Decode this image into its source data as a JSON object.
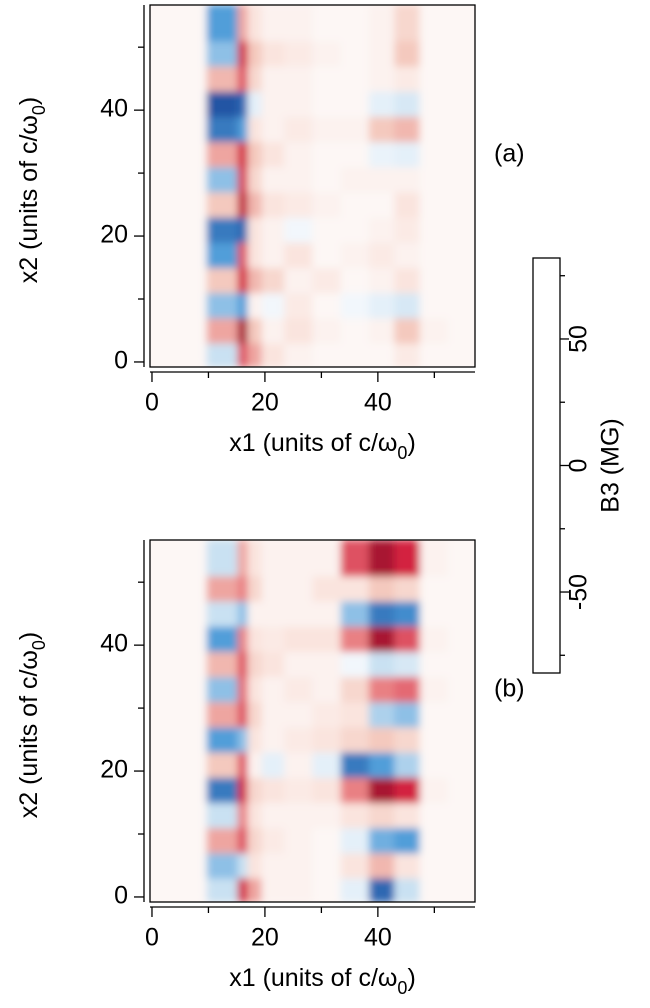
{
  "chart_data": [
    {
      "type": "heatmap",
      "panel_label": "(a)",
      "xlabel": [
        "x1 (units of c/ω",
        "0",
        ")"
      ],
      "ylabel": [
        "x2 (units of c/ω",
        "0",
        ")"
      ],
      "xlim": [
        -0.35,
        57.2
      ],
      "ylim": [
        -0.8,
        56.7
      ],
      "xticks": [
        0,
        20,
        40
      ],
      "xminorticks": [
        10,
        30,
        50
      ],
      "yticks": [
        0,
        20,
        40
      ],
      "yminorticks": [
        10,
        30,
        50
      ],
      "x": [
        5,
        14.5,
        16,
        18,
        21,
        26,
        31,
        36,
        41,
        45,
        50,
        55
      ],
      "y": [
        1,
        5,
        9,
        13,
        17,
        21,
        25,
        29,
        33,
        37,
        41,
        45,
        49,
        53
      ],
      "z": [
        [
          3,
          -20,
          50,
          30,
          10,
          5,
          3,
          3,
          3,
          8,
          3,
          3
        ],
        [
          3,
          30,
          70,
          20,
          5,
          10,
          5,
          3,
          5,
          20,
          5,
          3
        ],
        [
          3,
          -30,
          -40,
          5,
          -5,
          8,
          3,
          -5,
          -10,
          -15,
          3,
          3
        ],
        [
          3,
          20,
          60,
          25,
          15,
          5,
          8,
          3,
          5,
          10,
          3,
          3
        ],
        [
          3,
          -40,
          50,
          10,
          5,
          10,
          3,
          5,
          8,
          5,
          3,
          3
        ],
        [
          3,
          -50,
          -55,
          10,
          5,
          -5,
          3,
          3,
          5,
          8,
          3,
          3
        ],
        [
          3,
          20,
          65,
          25,
          10,
          8,
          5,
          3,
          3,
          10,
          3,
          3
        ],
        [
          3,
          -30,
          55,
          15,
          5,
          5,
          3,
          5,
          5,
          5,
          3,
          3
        ],
        [
          3,
          30,
          60,
          20,
          10,
          5,
          3,
          3,
          -8,
          -10,
          3,
          3
        ],
        [
          3,
          -50,
          -40,
          10,
          5,
          8,
          5,
          5,
          20,
          25,
          3,
          3
        ],
        [
          3,
          -60,
          -55,
          -10,
          5,
          5,
          3,
          3,
          -10,
          -15,
          3,
          3
        ],
        [
          3,
          25,
          50,
          15,
          5,
          5,
          3,
          3,
          5,
          8,
          3,
          3
        ],
        [
          3,
          -30,
          60,
          20,
          10,
          8,
          5,
          3,
          5,
          20,
          3,
          3
        ],
        [
          3,
          -40,
          30,
          10,
          5,
          5,
          3,
          3,
          5,
          15,
          3,
          3
        ]
      ]
    },
    {
      "type": "heatmap",
      "panel_label": "(b)",
      "xlabel": [
        "x1 (units of c/ω",
        "0",
        ")"
      ],
      "ylabel": [
        "x2 (units of c/ω",
        "0",
        ")"
      ],
      "xlim": [
        -0.35,
        57.2
      ],
      "ylim": [
        -0.8,
        56.7
      ],
      "xticks": [
        0,
        20,
        40
      ],
      "xminorticks": [
        10,
        30,
        50
      ],
      "yticks": [
        0,
        20,
        40
      ],
      "yminorticks": [
        10,
        30,
        50
      ],
      "x": [
        5,
        14.5,
        16,
        18,
        21,
        26,
        31,
        36,
        41,
        45,
        50,
        55
      ],
      "y": [
        1,
        5,
        9,
        13,
        17,
        21,
        25,
        29,
        33,
        37,
        41,
        45,
        49,
        53
      ],
      "z": [
        [
          3,
          -20,
          60,
          30,
          5,
          5,
          3,
          -10,
          -55,
          -20,
          3,
          3
        ],
        [
          3,
          -30,
          -20,
          10,
          5,
          5,
          3,
          10,
          25,
          10,
          3,
          3
        ],
        [
          3,
          30,
          50,
          15,
          8,
          5,
          3,
          -10,
          -35,
          -40,
          3,
          3
        ],
        [
          3,
          -20,
          40,
          10,
          5,
          5,
          5,
          10,
          15,
          10,
          3,
          3
        ],
        [
          3,
          -50,
          60,
          15,
          10,
          8,
          10,
          40,
          70,
          60,
          5,
          3
        ],
        [
          3,
          20,
          50,
          5,
          -10,
          5,
          -10,
          -50,
          -40,
          -25,
          3,
          3
        ],
        [
          3,
          -40,
          -30,
          10,
          5,
          8,
          10,
          15,
          20,
          15,
          3,
          3
        ],
        [
          3,
          30,
          50,
          15,
          5,
          5,
          8,
          10,
          -25,
          -30,
          3,
          3
        ],
        [
          3,
          -30,
          45,
          10,
          5,
          8,
          5,
          15,
          40,
          45,
          5,
          3
        ],
        [
          3,
          25,
          50,
          15,
          10,
          5,
          5,
          -5,
          -20,
          -15,
          3,
          3
        ],
        [
          3,
          -40,
          40,
          10,
          8,
          10,
          10,
          40,
          70,
          50,
          5,
          3
        ],
        [
          3,
          -20,
          -30,
          5,
          5,
          5,
          5,
          -30,
          -50,
          -45,
          3,
          3
        ],
        [
          3,
          30,
          40,
          15,
          5,
          5,
          10,
          10,
          20,
          15,
          3,
          3
        ],
        [
          3,
          -20,
          30,
          10,
          5,
          5,
          5,
          50,
          70,
          60,
          5,
          3
        ]
      ]
    }
  ],
  "colorbar": {
    "label": "B3 (MG)",
    "zlim": [
      -82,
      82
    ],
    "zticks": [
      -50,
      0,
      50
    ],
    "zminorticks": [
      -75,
      -25,
      25,
      75
    ],
    "colorscale": [
      "#0d1a4a",
      "#1f4fa0",
      "#4b9bd8",
      "#c8e0f2",
      "#ffffff",
      "#f4c8bc",
      "#e87c80",
      "#d11a3c",
      "#6e0a1e"
    ]
  }
}
